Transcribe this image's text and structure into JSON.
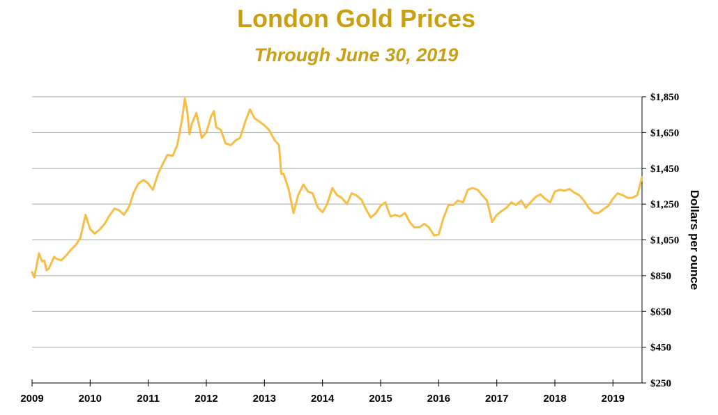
{
  "title": "London Gold Prices",
  "subtitle": "Through June 30, 2019",
  "colors": {
    "title": "#C9A014",
    "line": "#F7BD45",
    "grid": "#A6A6A6",
    "axis": "#000000"
  },
  "chart_data": {
    "type": "line",
    "title": "London Gold Prices",
    "subtitle": "Through June 30, 2019",
    "xlabel": "",
    "ylabel": "Dollars per ounce",
    "y_axis_side": "right",
    "xlim": [
      2009.0,
      2019.5
    ],
    "ylim": [
      250,
      1850
    ],
    "yticks": [
      250,
      450,
      650,
      850,
      1050,
      1250,
      1450,
      1650,
      1850
    ],
    "ytick_labels": [
      "$250",
      "$450",
      "$650",
      "$850",
      "$1,050",
      "$1,250",
      "$1,450",
      "$1,650",
      "$1,850"
    ],
    "xticks": [
      2009,
      2010,
      2011,
      2012,
      2013,
      2014,
      2015,
      2016,
      2017,
      2018,
      2019
    ],
    "xtick_labels": [
      "2009",
      "2010",
      "2011",
      "2012",
      "2013",
      "2014",
      "2015",
      "2016",
      "2017",
      "2018",
      "2019"
    ],
    "grid": "horizontal",
    "series": [
      {
        "name": "London Gold Price",
        "x": [
          2009.0,
          2009.04,
          2009.08,
          2009.12,
          2009.17,
          2009.21,
          2009.25,
          2009.29,
          2009.33,
          2009.38,
          2009.42,
          2009.5,
          2009.58,
          2009.67,
          2009.75,
          2009.83,
          2009.92,
          2010.0,
          2010.08,
          2010.17,
          2010.25,
          2010.33,
          2010.42,
          2010.5,
          2010.58,
          2010.67,
          2010.75,
          2010.83,
          2010.92,
          2011.0,
          2011.08,
          2011.17,
          2011.25,
          2011.33,
          2011.42,
          2011.5,
          2011.58,
          2011.63,
          2011.67,
          2011.71,
          2011.75,
          2011.83,
          2011.92,
          2012.0,
          2012.08,
          2012.13,
          2012.17,
          2012.25,
          2012.33,
          2012.42,
          2012.5,
          2012.58,
          2012.67,
          2012.75,
          2012.83,
          2012.92,
          2013.0,
          2013.08,
          2013.17,
          2013.25,
          2013.29,
          2013.33,
          2013.42,
          2013.5,
          2013.58,
          2013.67,
          2013.75,
          2013.83,
          2013.92,
          2014.0,
          2014.08,
          2014.17,
          2014.25,
          2014.33,
          2014.42,
          2014.5,
          2014.58,
          2014.67,
          2014.75,
          2014.83,
          2014.92,
          2015.0,
          2015.08,
          2015.17,
          2015.25,
          2015.33,
          2015.42,
          2015.5,
          2015.58,
          2015.67,
          2015.75,
          2015.83,
          2015.92,
          2016.0,
          2016.08,
          2016.17,
          2016.25,
          2016.33,
          2016.42,
          2016.5,
          2016.58,
          2016.67,
          2016.75,
          2016.83,
          2016.92,
          2017.0,
          2017.08,
          2017.17,
          2017.25,
          2017.33,
          2017.42,
          2017.5,
          2017.58,
          2017.67,
          2017.75,
          2017.83,
          2017.92,
          2018.0,
          2018.08,
          2018.17,
          2018.25,
          2018.33,
          2018.42,
          2018.5,
          2018.58,
          2018.67,
          2018.75,
          2018.83,
          2018.92,
          2019.0,
          2019.08,
          2019.17,
          2019.25,
          2019.33,
          2019.42,
          2019.5
        ],
        "values": [
          870,
          840,
          910,
          975,
          930,
          935,
          880,
          890,
          920,
          955,
          945,
          935,
          960,
          995,
          1020,
          1060,
          1190,
          1110,
          1085,
          1110,
          1140,
          1185,
          1225,
          1215,
          1190,
          1235,
          1315,
          1365,
          1385,
          1365,
          1330,
          1420,
          1475,
          1525,
          1520,
          1580,
          1720,
          1840,
          1775,
          1640,
          1700,
          1760,
          1620,
          1650,
          1740,
          1770,
          1680,
          1665,
          1590,
          1580,
          1605,
          1620,
          1710,
          1780,
          1730,
          1710,
          1690,
          1665,
          1610,
          1580,
          1420,
          1420,
          1330,
          1200,
          1300,
          1360,
          1320,
          1310,
          1230,
          1205,
          1250,
          1340,
          1300,
          1285,
          1250,
          1310,
          1300,
          1275,
          1220,
          1175,
          1200,
          1240,
          1260,
          1180,
          1190,
          1180,
          1200,
          1150,
          1120,
          1120,
          1140,
          1120,
          1075,
          1080,
          1170,
          1245,
          1245,
          1270,
          1260,
          1330,
          1340,
          1330,
          1300,
          1270,
          1150,
          1190,
          1210,
          1230,
          1260,
          1245,
          1270,
          1230,
          1260,
          1290,
          1305,
          1280,
          1260,
          1320,
          1330,
          1325,
          1335,
          1315,
          1300,
          1270,
          1230,
          1200,
          1200,
          1220,
          1240,
          1280,
          1310,
          1300,
          1285,
          1285,
          1300,
          1400
        ]
      }
    ]
  }
}
